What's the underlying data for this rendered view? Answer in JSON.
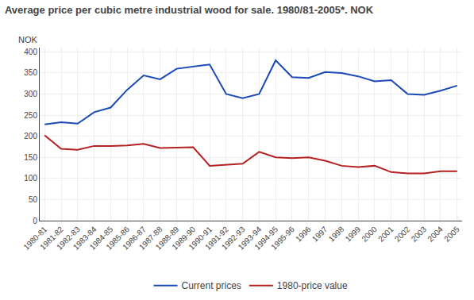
{
  "chart_data": {
    "type": "line",
    "title": "Average price per cubic metre industrial wood for sale. 1980/81-2005*. NOK",
    "ylabel": "NOK",
    "categories": [
      "1980-81",
      "1981-82",
      "1982-83",
      "1983-84",
      "1984-85",
      "1985-86",
      "1986-87",
      "1987-88",
      "1988-89",
      "1989-90",
      "1990-91",
      "1991-92",
      "1992-93",
      "1993-94",
      "1994-95",
      "1995-96",
      "1996",
      "1997",
      "1998",
      "1999",
      "2000",
      "2001",
      "2002",
      "2003",
      "2004",
      "2005"
    ],
    "series": [
      {
        "name": "Current prices",
        "color": "#1a4ab5",
        "values": [
          228,
          233,
          230,
          257,
          268,
          310,
          344,
          335,
          360,
          365,
          370,
          300,
          290,
          300,
          380,
          340,
          338,
          352,
          350,
          342,
          330,
          333,
          300,
          298,
          308,
          320
        ]
      },
      {
        "name": "1980-price value",
        "color": "#b52020",
        "values": [
          202,
          170,
          168,
          177,
          177,
          178,
          182,
          172,
          173,
          174,
          130,
          132,
          135,
          163,
          150,
          148,
          150,
          142,
          130,
          127,
          130,
          115,
          112,
          112,
          117,
          117
        ]
      }
    ],
    "ylim": [
      0,
      410
    ],
    "yticks": [
      0,
      50,
      100,
      150,
      200,
      250,
      300,
      350,
      400
    ],
    "grid": true,
    "legend": "bottom"
  }
}
